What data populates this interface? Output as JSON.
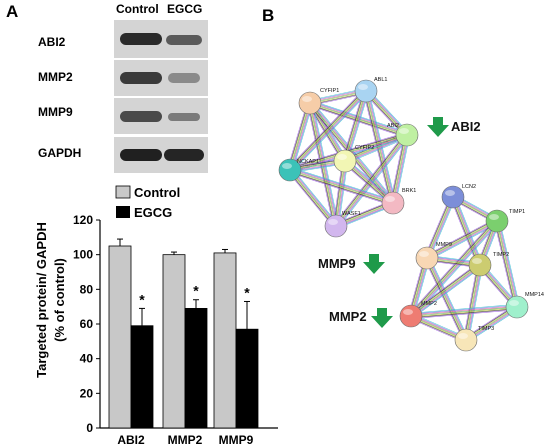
{
  "panels": {
    "a_label": "A",
    "b_label": "B"
  },
  "western_blot": {
    "columns": [
      "Control",
      "EGCG"
    ],
    "rows": [
      {
        "label": "ABI2"
      },
      {
        "label": "MMP2"
      },
      {
        "label": "MMP9"
      },
      {
        "label": "GAPDH"
      }
    ]
  },
  "chart_data": {
    "type": "bar",
    "categories": [
      "ABI2",
      "MMP2",
      "MMP9"
    ],
    "series": [
      {
        "name": "Control",
        "values": [
          105,
          100,
          101
        ],
        "errors": [
          4,
          1.5,
          2
        ],
        "color": "#c8c8c8"
      },
      {
        "name": "EGCG",
        "values": [
          59,
          69,
          57
        ],
        "errors": [
          10,
          5,
          16
        ],
        "color": "#000000"
      }
    ],
    "significance": [
      "*",
      "*",
      "*"
    ],
    "ylabel_line1": "Targeted protein/ GAPDH",
    "ylabel_line2": "(% of control)",
    "ylim": [
      0,
      120
    ],
    "yticks": [
      0,
      20,
      40,
      60,
      80,
      100,
      120
    ],
    "legend_position": "top"
  },
  "network": {
    "cluster1": [
      {
        "label": "CYFIP1",
        "color": "#f6cda8"
      },
      {
        "label": "ABL1",
        "color": "#a9d4f2"
      },
      {
        "label": "ABI2",
        "color": "#bff0a2"
      },
      {
        "label": "CYFIP2",
        "color": "#f2f6b4"
      },
      {
        "label": "NCKAP1",
        "color": "#3cc2b8"
      },
      {
        "label": "BRK1",
        "color": "#f3b9c3"
      },
      {
        "label": "WASF1",
        "color": "#d2b7ee"
      }
    ],
    "cluster2": [
      {
        "label": "LCN2",
        "color": "#7c8ed8"
      },
      {
        "label": "TIMP1",
        "color": "#7bcf6e"
      },
      {
        "label": "MMP9",
        "color": "#f8d7b4"
      },
      {
        "label": "TIMP2",
        "color": "#cccc70"
      },
      {
        "label": "MMP2",
        "color": "#ee7c72"
      },
      {
        "label": "MMP14",
        "color": "#9ff0cc"
      },
      {
        "label": "TIMP3",
        "color": "#f7e6b8"
      }
    ],
    "highlighted": [
      "ABI2",
      "MMP9",
      "MMP2"
    ],
    "arrow_color": "#1f9a4a"
  }
}
